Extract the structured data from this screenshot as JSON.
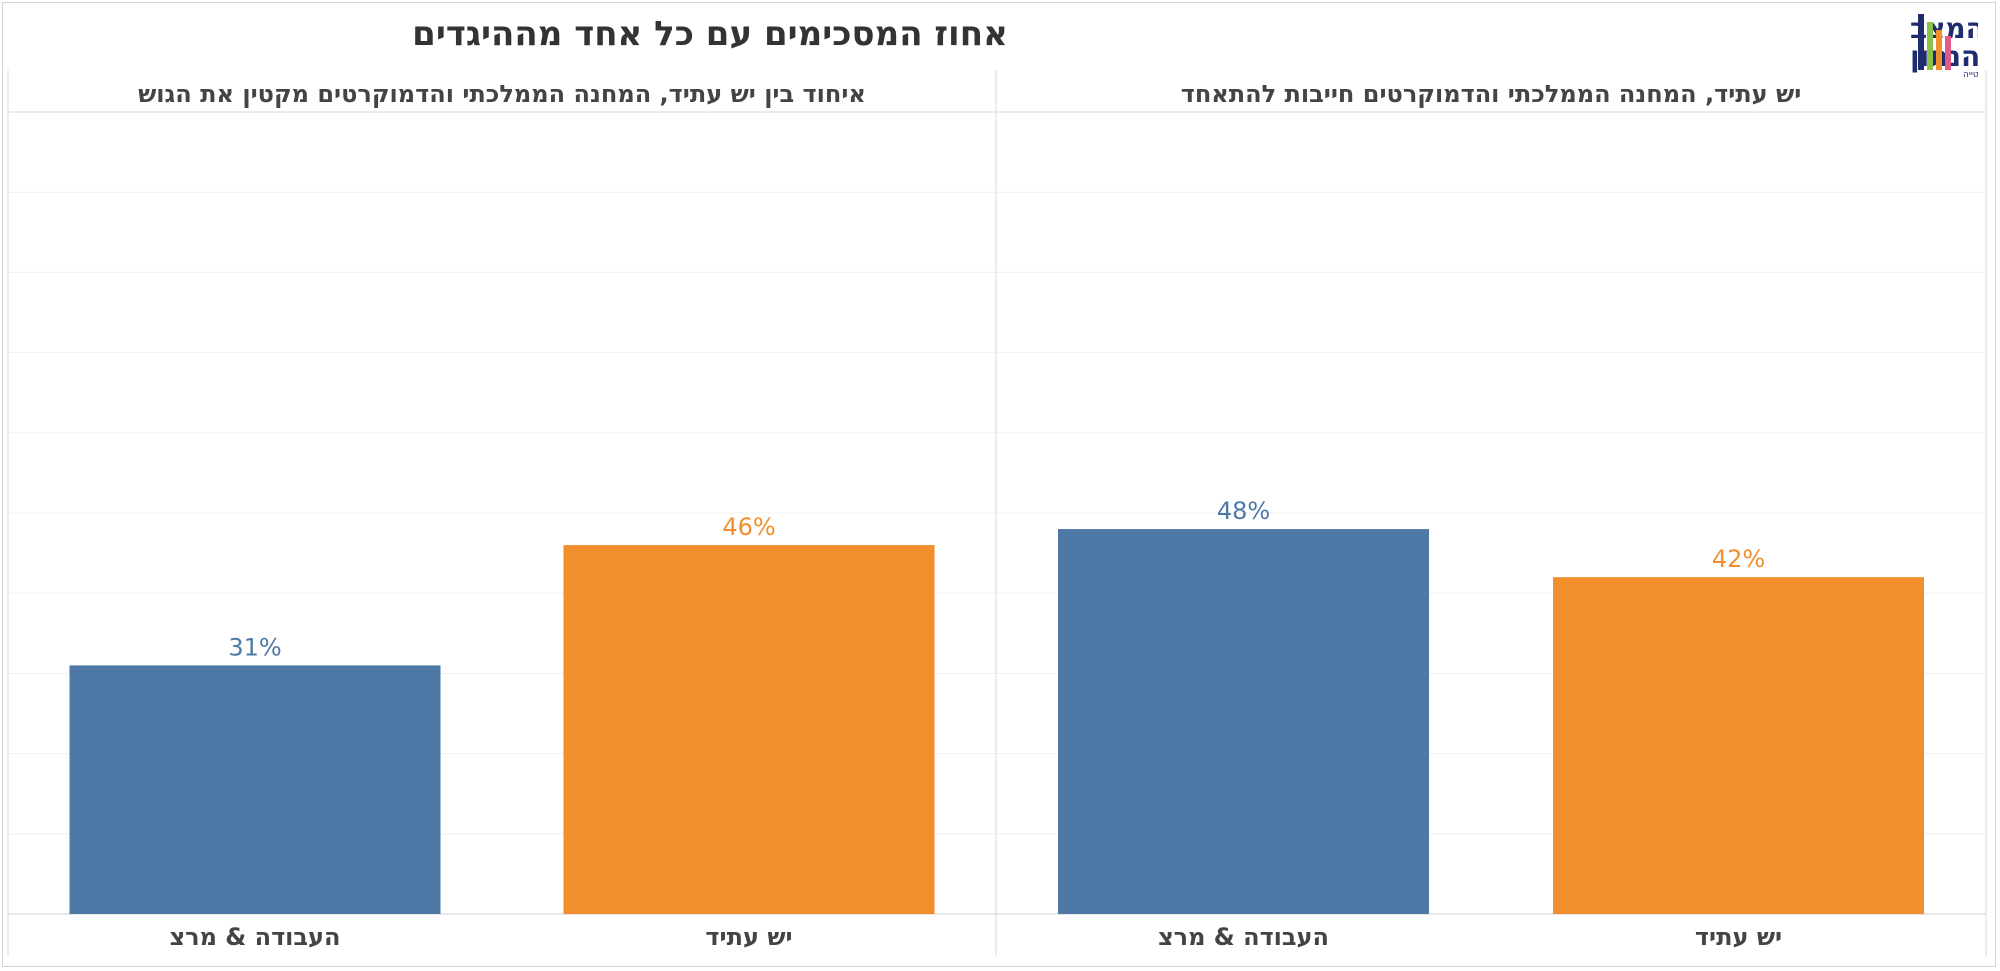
{
  "chart_data": {
    "type": "bar",
    "title": "אחוז המסכימים עם כל אחד מההיגדים",
    "colors": {
      "blue": "#4e79a7",
      "orange": "#f28e2b"
    },
    "ylim": [
      0,
      100
    ],
    "grid": true,
    "panels": [
      {
        "title": "יש עתיד, המחנה הממלכתי והדמוקרטים חייבות להתאחד",
        "categories": [
          "יש עתיד",
          "העבודה & מרצ"
        ],
        "values": [
          42,
          48
        ],
        "labels": [
          "42%",
          "48%"
        ],
        "colors": [
          "#f28e2b",
          "#4e79a7"
        ]
      },
      {
        "title": "איחוד בין יש עתיד, המחנה הממלכתי והדמוקרטים מקטין את הגוש",
        "categories": [
          "יש עתיד",
          "העבודה & מרצ"
        ],
        "values": [
          46,
          31
        ],
        "labels": [
          "46%",
          "31%"
        ],
        "colors": [
          "#f28e2b",
          "#4e79a7"
        ]
      }
    ]
  },
  "logo": {
    "line1": "המצב",
    "line2": "הנתון",
    "tagline": "נתונים עם ערך וללא הטייה",
    "bar_colors": [
      "#1f2d6e",
      "#8bc34a",
      "#f28e2b",
      "#e05a8a"
    ]
  }
}
